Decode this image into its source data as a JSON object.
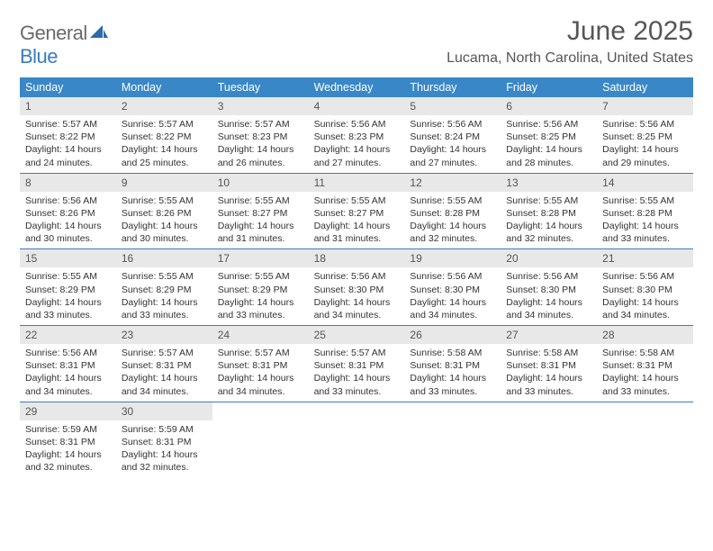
{
  "brand": {
    "part1": "General",
    "part2": "Blue"
  },
  "title": "June 2025",
  "location": "Lucama, North Carolina, United States",
  "colors": {
    "header_bg": "#3a87c7",
    "row_divider": "#3a7bbf",
    "daynum_bg": "#e8e8e8",
    "text": "#333333",
    "title_text": "#565656"
  },
  "typography": {
    "title_fontsize": 30,
    "location_fontsize": 16,
    "dow_fontsize": 12.5,
    "body_fontsize": 10.5
  },
  "days_of_week": [
    "Sunday",
    "Monday",
    "Tuesday",
    "Wednesday",
    "Thursday",
    "Friday",
    "Saturday"
  ],
  "weeks": [
    [
      {
        "n": 1,
        "sunrise": "5:57 AM",
        "sunset": "8:22 PM",
        "dl_h": 14,
        "dl_m": 24
      },
      {
        "n": 2,
        "sunrise": "5:57 AM",
        "sunset": "8:22 PM",
        "dl_h": 14,
        "dl_m": 25
      },
      {
        "n": 3,
        "sunrise": "5:57 AM",
        "sunset": "8:23 PM",
        "dl_h": 14,
        "dl_m": 26
      },
      {
        "n": 4,
        "sunrise": "5:56 AM",
        "sunset": "8:23 PM",
        "dl_h": 14,
        "dl_m": 27
      },
      {
        "n": 5,
        "sunrise": "5:56 AM",
        "sunset": "8:24 PM",
        "dl_h": 14,
        "dl_m": 27
      },
      {
        "n": 6,
        "sunrise": "5:56 AM",
        "sunset": "8:25 PM",
        "dl_h": 14,
        "dl_m": 28
      },
      {
        "n": 7,
        "sunrise": "5:56 AM",
        "sunset": "8:25 PM",
        "dl_h": 14,
        "dl_m": 29
      }
    ],
    [
      {
        "n": 8,
        "sunrise": "5:56 AM",
        "sunset": "8:26 PM",
        "dl_h": 14,
        "dl_m": 30
      },
      {
        "n": 9,
        "sunrise": "5:55 AM",
        "sunset": "8:26 PM",
        "dl_h": 14,
        "dl_m": 30
      },
      {
        "n": 10,
        "sunrise": "5:55 AM",
        "sunset": "8:27 PM",
        "dl_h": 14,
        "dl_m": 31
      },
      {
        "n": 11,
        "sunrise": "5:55 AM",
        "sunset": "8:27 PM",
        "dl_h": 14,
        "dl_m": 31
      },
      {
        "n": 12,
        "sunrise": "5:55 AM",
        "sunset": "8:28 PM",
        "dl_h": 14,
        "dl_m": 32
      },
      {
        "n": 13,
        "sunrise": "5:55 AM",
        "sunset": "8:28 PM",
        "dl_h": 14,
        "dl_m": 32
      },
      {
        "n": 14,
        "sunrise": "5:55 AM",
        "sunset": "8:28 PM",
        "dl_h": 14,
        "dl_m": 33
      }
    ],
    [
      {
        "n": 15,
        "sunrise": "5:55 AM",
        "sunset": "8:29 PM",
        "dl_h": 14,
        "dl_m": 33
      },
      {
        "n": 16,
        "sunrise": "5:55 AM",
        "sunset": "8:29 PM",
        "dl_h": 14,
        "dl_m": 33
      },
      {
        "n": 17,
        "sunrise": "5:55 AM",
        "sunset": "8:29 PM",
        "dl_h": 14,
        "dl_m": 33
      },
      {
        "n": 18,
        "sunrise": "5:56 AM",
        "sunset": "8:30 PM",
        "dl_h": 14,
        "dl_m": 34
      },
      {
        "n": 19,
        "sunrise": "5:56 AM",
        "sunset": "8:30 PM",
        "dl_h": 14,
        "dl_m": 34
      },
      {
        "n": 20,
        "sunrise": "5:56 AM",
        "sunset": "8:30 PM",
        "dl_h": 14,
        "dl_m": 34
      },
      {
        "n": 21,
        "sunrise": "5:56 AM",
        "sunset": "8:30 PM",
        "dl_h": 14,
        "dl_m": 34
      }
    ],
    [
      {
        "n": 22,
        "sunrise": "5:56 AM",
        "sunset": "8:31 PM",
        "dl_h": 14,
        "dl_m": 34
      },
      {
        "n": 23,
        "sunrise": "5:57 AM",
        "sunset": "8:31 PM",
        "dl_h": 14,
        "dl_m": 34
      },
      {
        "n": 24,
        "sunrise": "5:57 AM",
        "sunset": "8:31 PM",
        "dl_h": 14,
        "dl_m": 34
      },
      {
        "n": 25,
        "sunrise": "5:57 AM",
        "sunset": "8:31 PM",
        "dl_h": 14,
        "dl_m": 33
      },
      {
        "n": 26,
        "sunrise": "5:58 AM",
        "sunset": "8:31 PM",
        "dl_h": 14,
        "dl_m": 33
      },
      {
        "n": 27,
        "sunrise": "5:58 AM",
        "sunset": "8:31 PM",
        "dl_h": 14,
        "dl_m": 33
      },
      {
        "n": 28,
        "sunrise": "5:58 AM",
        "sunset": "8:31 PM",
        "dl_h": 14,
        "dl_m": 33
      }
    ],
    [
      {
        "n": 29,
        "sunrise": "5:59 AM",
        "sunset": "8:31 PM",
        "dl_h": 14,
        "dl_m": 32
      },
      {
        "n": 30,
        "sunrise": "5:59 AM",
        "sunset": "8:31 PM",
        "dl_h": 14,
        "dl_m": 32
      },
      null,
      null,
      null,
      null,
      null
    ]
  ]
}
